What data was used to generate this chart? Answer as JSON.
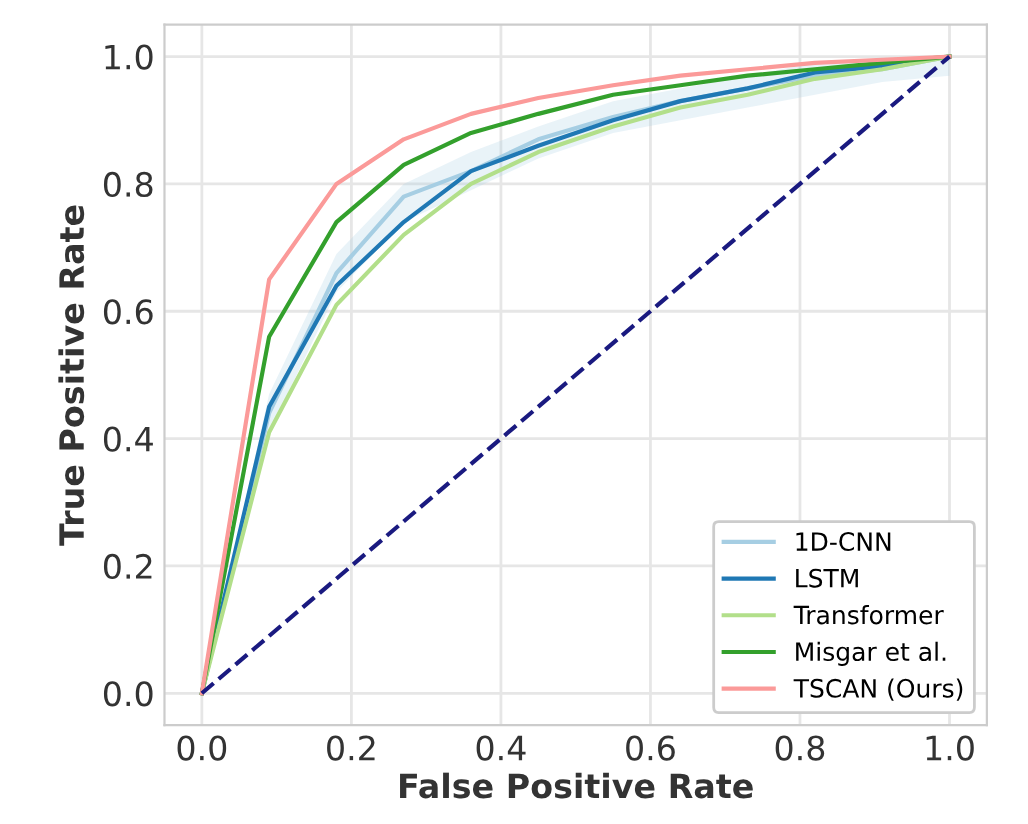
{
  "chart_data": {
    "type": "line",
    "xlabel": "False Positive Rate",
    "ylabel": "True Positive Rate",
    "xlim": [
      -0.05,
      1.05
    ],
    "ylim": [
      -0.05,
      1.05
    ],
    "xticks": [
      {
        "value": 0,
        "label": "0.0"
      },
      0.2,
      0.4,
      0.6,
      0.8,
      {
        "value": 1,
        "label": "1.0"
      }
    ],
    "yticks": [
      {
        "value": 0,
        "label": "0.0"
      },
      0.2,
      0.4,
      0.6,
      0.8,
      {
        "value": 1,
        "label": "1.0"
      }
    ],
    "x": [
      0,
      0.09,
      0.18,
      0.27,
      0.36,
      0.45,
      0.55,
      0.64,
      0.73,
      0.82,
      0.91,
      1.0
    ],
    "grid": true,
    "legend": "bottom right",
    "marker": "none",
    "line_style": "solid",
    "series": [
      {
        "name": "1D-CNN",
        "color": "#a6cee3",
        "values": [
          0,
          0.44,
          0.66,
          0.78,
          0.82,
          0.87,
          0.905,
          0.93,
          0.95,
          0.97,
          0.98,
          1.0
        ],
        "lower": [
          0,
          0.41,
          0.63,
          0.74,
          0.79,
          0.84,
          0.88,
          0.9,
          0.92,
          0.94,
          0.96,
          0.97
        ],
        "upper": [
          0,
          0.47,
          0.69,
          0.8,
          0.85,
          0.89,
          0.93,
          0.95,
          0.97,
          0.99,
          0.995,
          1.0
        ]
      },
      {
        "name": "LSTM",
        "color": "#1f78b4",
        "values": [
          0,
          0.45,
          0.64,
          0.74,
          0.82,
          0.86,
          0.9,
          0.93,
          0.95,
          0.975,
          0.985,
          1.0
        ]
      },
      {
        "name": "Transformer",
        "color": "#b2df8a",
        "values": [
          0,
          0.41,
          0.61,
          0.72,
          0.8,
          0.85,
          0.89,
          0.92,
          0.94,
          0.965,
          0.98,
          1.0
        ]
      },
      {
        "name": "Misgar et al.",
        "color": "#33a02c",
        "values": [
          0,
          0.56,
          0.74,
          0.83,
          0.88,
          0.91,
          0.94,
          0.955,
          0.97,
          0.98,
          0.99,
          1.0
        ]
      },
      {
        "name": "TSCAN (Ours)",
        "color": "#fb9a99",
        "values": [
          0,
          0.65,
          0.8,
          0.87,
          0.91,
          0.935,
          0.955,
          0.97,
          0.98,
          0.99,
          0.995,
          1.0
        ]
      },
      {
        "color": "#1a1a80",
        "x": [
          0,
          1
        ],
        "values": [
          0,
          1
        ],
        "line_style": "dashed"
      }
    ]
  }
}
